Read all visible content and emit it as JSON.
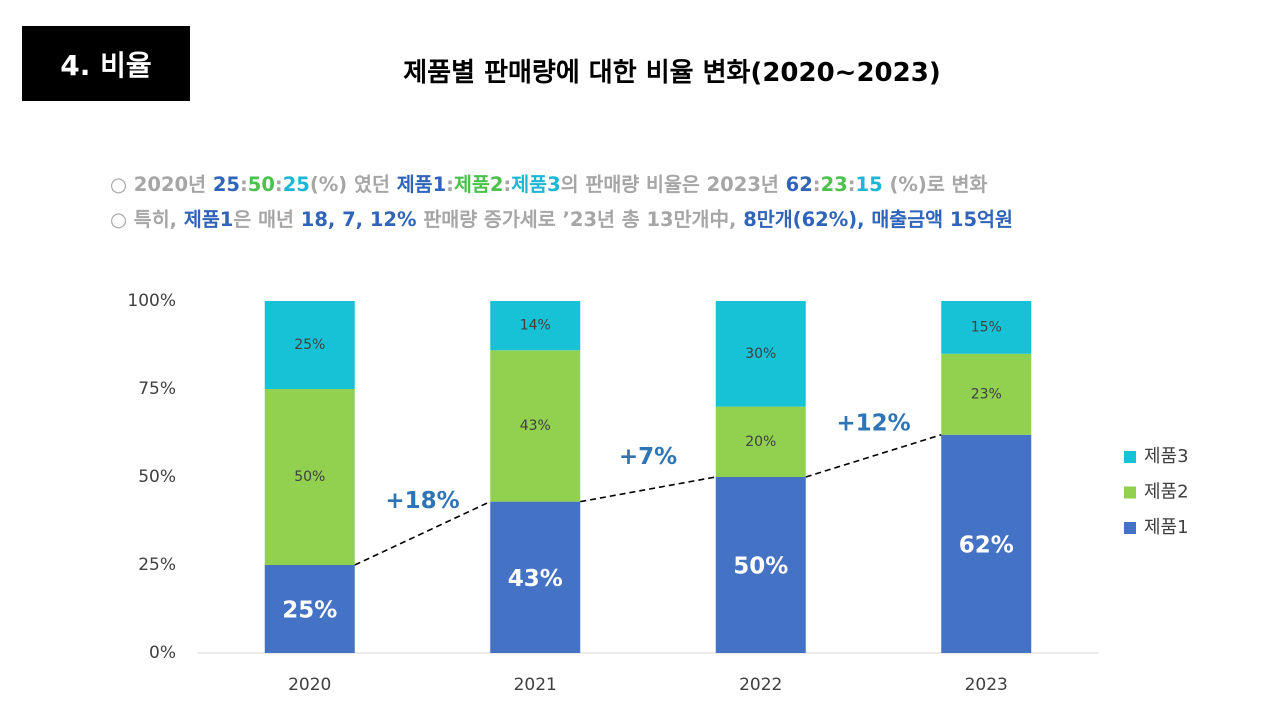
{
  "header": {
    "label": "4. 비율"
  },
  "bullets": [
    [
      {
        "text": "○ 2020년 ",
        "color": "#a6a6a6"
      },
      {
        "text": "25",
        "color": "#2f64b9"
      },
      {
        "text": ":",
        "color": "#a6a6a6"
      },
      {
        "text": "50",
        "color": "#4cc14c"
      },
      {
        "text": ":",
        "color": "#a6a6a6"
      },
      {
        "text": "25",
        "color": "#1db6d4"
      },
      {
        "text": "(%) 였던 ",
        "color": "#a6a6a6"
      },
      {
        "text": "제품1",
        "color": "#2f64b9"
      },
      {
        "text": ":",
        "color": "#a6a6a6"
      },
      {
        "text": "제품2",
        "color": "#4cc14c"
      },
      {
        "text": ":",
        "color": "#a6a6a6"
      },
      {
        "text": "제품3",
        "color": "#1db6d4"
      },
      {
        "text": "의 판매량 비율은 2023년 ",
        "color": "#a6a6a6"
      },
      {
        "text": "62",
        "color": "#2f64b9"
      },
      {
        "text": ":",
        "color": "#a6a6a6"
      },
      {
        "text": "23",
        "color": "#4cc14c"
      },
      {
        "text": ":",
        "color": "#a6a6a6"
      },
      {
        "text": "15",
        "color": "#1db6d4"
      },
      {
        "text": " (%)로 변화",
        "color": "#a6a6a6"
      }
    ],
    [
      {
        "text": "○ 특히, ",
        "color": "#a6a6a6"
      },
      {
        "text": "제품1",
        "color": "#2f64b9"
      },
      {
        "text": "은 매년 ",
        "color": "#a6a6a6"
      },
      {
        "text": "18, 7, 12%",
        "color": "#2f64b9"
      },
      {
        "text": " 판매량 증가세로 ’23년 총 13만개中, ",
        "color": "#a6a6a6"
      },
      {
        "text": "8만개(62%), 매출금액 15억원",
        "color": "#2f64b9"
      }
    ]
  ],
  "chart_data": {
    "type": "stacked_bar",
    "title": "제품별 판매량에 대한 비율 변화(2020~2023)",
    "categories": [
      "2020",
      "2021",
      "2022",
      "2023"
    ],
    "series": [
      {
        "name": "제품1",
        "color": "#4472c4",
        "values": [
          25,
          43,
          50,
          62
        ],
        "value_labels": [
          "25%",
          "43%",
          "50%",
          "62%"
        ]
      },
      {
        "name": "제품2",
        "color": "#92d050",
        "values": [
          50,
          43,
          20,
          23
        ],
        "value_labels": [
          "50%",
          "43%",
          "20%",
          "23%"
        ]
      },
      {
        "name": "제품3",
        "color": "#17c1d6",
        "values": [
          25,
          14,
          30,
          15
        ],
        "value_labels": [
          "25%",
          "14%",
          "30%",
          "15%"
        ]
      }
    ],
    "annotations": [
      "+18%",
      "+7%",
      "+12%"
    ],
    "ylim": [
      0,
      100
    ],
    "yticks": [
      {
        "value": 0,
        "label": "0%"
      },
      {
        "value": 25,
        "label": "25%"
      },
      {
        "value": 50,
        "label": "50%"
      },
      {
        "value": 75,
        "label": "75%"
      },
      {
        "value": 100,
        "label": "100%"
      }
    ],
    "legend": "right"
  }
}
